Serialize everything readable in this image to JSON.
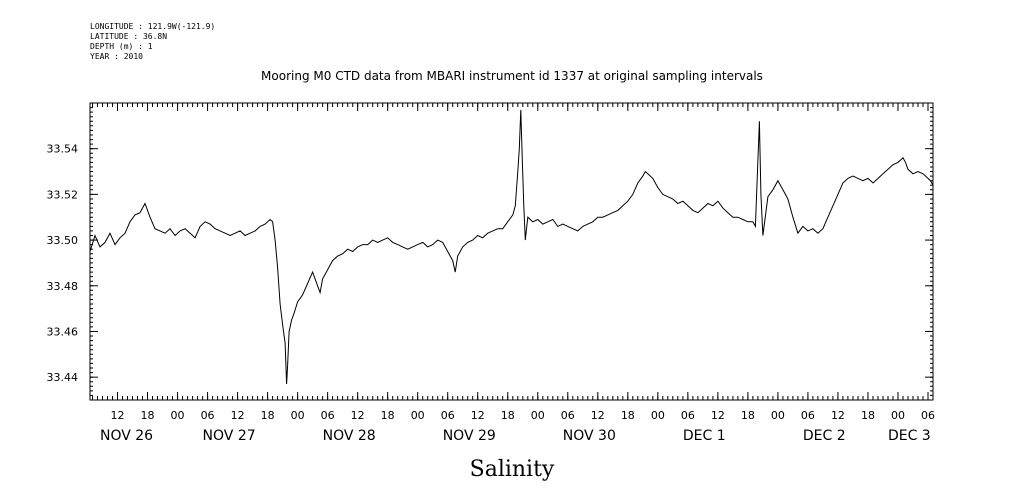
{
  "metadata": [
    "LONGITUDE : 121.9W(-121.9)",
    "LATITUDE : 36.8N",
    "DEPTH (m) : 1",
    "YEAR : 2010"
  ],
  "chart_data": {
    "type": "line",
    "title": "Mooring M0 CTD data from MBARI instrument id 1337 at original sampling intervals",
    "xlabel": "Salinity",
    "ylabel": "",
    "x_units": "hours since Nov 26 00:00, 2010",
    "xlim": [
      6.5,
      175
    ],
    "ylim": [
      33.43,
      33.56
    ],
    "yticks": [
      33.44,
      33.46,
      33.48,
      33.5,
      33.52,
      33.54
    ],
    "ytick_labels": [
      "33.44",
      "33.46",
      "33.48",
      "33.50",
      "33.52",
      "33.54"
    ],
    "xtick_labels": [
      {
        "x": 12,
        "label": "12"
      },
      {
        "x": 18,
        "label": "18"
      },
      {
        "x": 24,
        "label": "00"
      },
      {
        "x": 30,
        "label": "06"
      },
      {
        "x": 36,
        "label": "12"
      },
      {
        "x": 42,
        "label": "18"
      },
      {
        "x": 48,
        "label": "00"
      },
      {
        "x": 54,
        "label": "06"
      },
      {
        "x": 60,
        "label": "12"
      },
      {
        "x": 66,
        "label": "18"
      },
      {
        "x": 72,
        "label": "00"
      },
      {
        "x": 78,
        "label": "06"
      },
      {
        "x": 84,
        "label": "12"
      },
      {
        "x": 90,
        "label": "18"
      },
      {
        "x": 96,
        "label": "00"
      },
      {
        "x": 102,
        "label": "06"
      },
      {
        "x": 108,
        "label": "12"
      },
      {
        "x": 114,
        "label": "18"
      },
      {
        "x": 120,
        "label": "00"
      },
      {
        "x": 126,
        "label": "06"
      },
      {
        "x": 132,
        "label": "12"
      },
      {
        "x": 138,
        "label": "18"
      },
      {
        "x": 144,
        "label": "00"
      },
      {
        "x": 150,
        "label": "06"
      },
      {
        "x": 156,
        "label": "12"
      },
      {
        "x": 162,
        "label": "18"
      },
      {
        "x": 168,
        "label": "00"
      },
      {
        "x": 174,
        "label": "06"
      }
    ],
    "date_labels": [
      {
        "x": 6.5,
        "label": "NOV 26"
      },
      {
        "x": 27,
        "label": "NOV 27"
      },
      {
        "x": 51,
        "label": "NOV 28"
      },
      {
        "x": 75,
        "label": "NOV 29"
      },
      {
        "x": 99,
        "label": "NOV 30"
      },
      {
        "x": 123,
        "label": "DEC  1"
      },
      {
        "x": 147,
        "label": "DEC  2"
      },
      {
        "x": 164,
        "label": "DEC  3"
      }
    ],
    "series": [
      {
        "points": [
          [
            6.5,
            33.495
          ],
          [
            7.5,
            33.502
          ],
          [
            8.5,
            33.497
          ],
          [
            9.5,
            33.499
          ],
          [
            10.5,
            33.503
          ],
          [
            11.5,
            33.498
          ],
          [
            12.5,
            33.501
          ],
          [
            13.5,
            33.503
          ],
          [
            14.5,
            33.508
          ],
          [
            15.5,
            33.511
          ],
          [
            16.5,
            33.512
          ],
          [
            17.5,
            33.516
          ],
          [
            18.5,
            33.51
          ],
          [
            19.5,
            33.505
          ],
          [
            20.5,
            33.504
          ],
          [
            21.5,
            33.503
          ],
          [
            22.5,
            33.505
          ],
          [
            23.5,
            33.502
          ],
          [
            24.5,
            33.504
          ],
          [
            25.5,
            33.505
          ],
          [
            26.5,
            33.503
          ],
          [
            27.5,
            33.501
          ],
          [
            28.5,
            33.506
          ],
          [
            29.5,
            33.508
          ],
          [
            30.5,
            33.507
          ],
          [
            31.5,
            33.505
          ],
          [
            32.5,
            33.504
          ],
          [
            33.5,
            33.503
          ],
          [
            34.5,
            33.502
          ],
          [
            35.5,
            33.503
          ],
          [
            36.5,
            33.504
          ],
          [
            37.5,
            33.502
          ],
          [
            38.5,
            33.503
          ],
          [
            39.5,
            33.504
          ],
          [
            40.5,
            33.506
          ],
          [
            41.5,
            33.507
          ],
          [
            42.5,
            33.509
          ],
          [
            43.0,
            33.508
          ],
          [
            43.5,
            33.5
          ],
          [
            44.0,
            33.488
          ],
          [
            44.5,
            33.472
          ],
          [
            45.0,
            33.463
          ],
          [
            45.5,
            33.455
          ],
          [
            45.8,
            33.437
          ],
          [
            46.0,
            33.445
          ],
          [
            46.3,
            33.46
          ],
          [
            46.8,
            33.465
          ],
          [
            47.3,
            33.468
          ],
          [
            48.0,
            33.473
          ],
          [
            49.0,
            33.476
          ],
          [
            50.0,
            33.481
          ],
          [
            51.0,
            33.486
          ],
          [
            52.0,
            33.48
          ],
          [
            52.5,
            33.477
          ],
          [
            53.0,
            33.483
          ],
          [
            54.0,
            33.487
          ],
          [
            55.0,
            33.491
          ],
          [
            56.0,
            33.493
          ],
          [
            57.0,
            33.494
          ],
          [
            58.0,
            33.496
          ],
          [
            59.0,
            33.495
          ],
          [
            60.0,
            33.497
          ],
          [
            61.0,
            33.498
          ],
          [
            62.0,
            33.498
          ],
          [
            63.0,
            33.5
          ],
          [
            64.0,
            33.499
          ],
          [
            65.0,
            33.5
          ],
          [
            66.0,
            33.501
          ],
          [
            67.0,
            33.499
          ],
          [
            68.0,
            33.498
          ],
          [
            69.0,
            33.497
          ],
          [
            70.0,
            33.496
          ],
          [
            71.0,
            33.497
          ],
          [
            72.0,
            33.498
          ],
          [
            73.0,
            33.499
          ],
          [
            74.0,
            33.497
          ],
          [
            75.0,
            33.498
          ],
          [
            76.0,
            33.5
          ],
          [
            77.0,
            33.499
          ],
          [
            78.0,
            33.495
          ],
          [
            79.0,
            33.491
          ],
          [
            79.5,
            33.486
          ],
          [
            80.0,
            33.493
          ],
          [
            81.0,
            33.497
          ],
          [
            82.0,
            33.499
          ],
          [
            83.0,
            33.5
          ],
          [
            84.0,
            33.502
          ],
          [
            85.0,
            33.501
          ],
          [
            86.0,
            33.503
          ],
          [
            87.0,
            33.504
          ],
          [
            88.0,
            33.505
          ],
          [
            89.0,
            33.505
          ],
          [
            90.0,
            33.508
          ],
          [
            91.0,
            33.511
          ],
          [
            91.5,
            33.515
          ],
          [
            92.0,
            33.53
          ],
          [
            92.3,
            33.54
          ],
          [
            92.6,
            33.557
          ],
          [
            92.9,
            33.535
          ],
          [
            93.2,
            33.515
          ],
          [
            93.5,
            33.5
          ],
          [
            94.0,
            33.51
          ],
          [
            95.0,
            33.508
          ],
          [
            96.0,
            33.509
          ],
          [
            97.0,
            33.507
          ],
          [
            98.0,
            33.508
          ],
          [
            99.0,
            33.509
          ],
          [
            100.0,
            33.506
          ],
          [
            101.0,
            33.507
          ],
          [
            102.0,
            33.506
          ],
          [
            103.0,
            33.505
          ],
          [
            104.0,
            33.504
          ],
          [
            105.0,
            33.506
          ],
          [
            106.0,
            33.507
          ],
          [
            107.0,
            33.508
          ],
          [
            108.0,
            33.51
          ],
          [
            109.0,
            33.51
          ],
          [
            110.0,
            33.511
          ],
          [
            111.0,
            33.512
          ],
          [
            112.0,
            33.513
          ],
          [
            113.0,
            33.515
          ],
          [
            114.0,
            33.517
          ],
          [
            115.0,
            33.52
          ],
          [
            116.0,
            33.525
          ],
          [
            117.0,
            33.528
          ],
          [
            117.5,
            33.53
          ],
          [
            118.0,
            33.529
          ],
          [
            119.0,
            33.527
          ],
          [
            120.0,
            33.523
          ],
          [
            121.0,
            33.52
          ],
          [
            122.0,
            33.519
          ],
          [
            123.0,
            33.518
          ],
          [
            124.0,
            33.516
          ],
          [
            125.0,
            33.517
          ],
          [
            126.0,
            33.515
          ],
          [
            127.0,
            33.513
          ],
          [
            128.0,
            33.512
          ],
          [
            129.0,
            33.514
          ],
          [
            130.0,
            33.516
          ],
          [
            131.0,
            33.515
          ],
          [
            132.0,
            33.517
          ],
          [
            133.0,
            33.514
          ],
          [
            134.0,
            33.512
          ],
          [
            135.0,
            33.51
          ],
          [
            136.0,
            33.51
          ],
          [
            137.0,
            33.509
          ],
          [
            138.0,
            33.508
          ],
          [
            139.0,
            33.508
          ],
          [
            139.5,
            33.506
          ],
          [
            140.0,
            33.535
          ],
          [
            140.3,
            33.552
          ],
          [
            140.6,
            33.52
          ],
          [
            141.0,
            33.502
          ],
          [
            142.0,
            33.519
          ],
          [
            143.0,
            33.522
          ],
          [
            144.0,
            33.526
          ],
          [
            145.0,
            33.522
          ],
          [
            146.0,
            33.518
          ],
          [
            147.0,
            33.51
          ],
          [
            148.0,
            33.503
          ],
          [
            149.0,
            33.506
          ],
          [
            150.0,
            33.504
          ],
          [
            151.0,
            33.505
          ],
          [
            152.0,
            33.503
          ],
          [
            153.0,
            33.505
          ],
          [
            154.0,
            33.51
          ],
          [
            155.0,
            33.515
          ],
          [
            156.0,
            33.52
          ],
          [
            157.0,
            33.525
          ],
          [
            158.0,
            33.527
          ],
          [
            159.0,
            33.528
          ],
          [
            160.0,
            33.527
          ],
          [
            161.0,
            33.526
          ],
          [
            162.0,
            33.527
          ],
          [
            163.0,
            33.525
          ],
          [
            164.0,
            33.527
          ],
          [
            165.0,
            33.529
          ],
          [
            166.0,
            33.531
          ],
          [
            167.0,
            33.533
          ],
          [
            168.0,
            33.534
          ],
          [
            169.0,
            33.536
          ],
          [
            169.5,
            33.534
          ],
          [
            170.0,
            33.531
          ],
          [
            171.0,
            33.529
          ],
          [
            172.0,
            33.53
          ],
          [
            173.0,
            33.529
          ],
          [
            174.0,
            33.527
          ],
          [
            174.5,
            33.526
          ],
          [
            175.0,
            33.524
          ]
        ]
      }
    ]
  }
}
